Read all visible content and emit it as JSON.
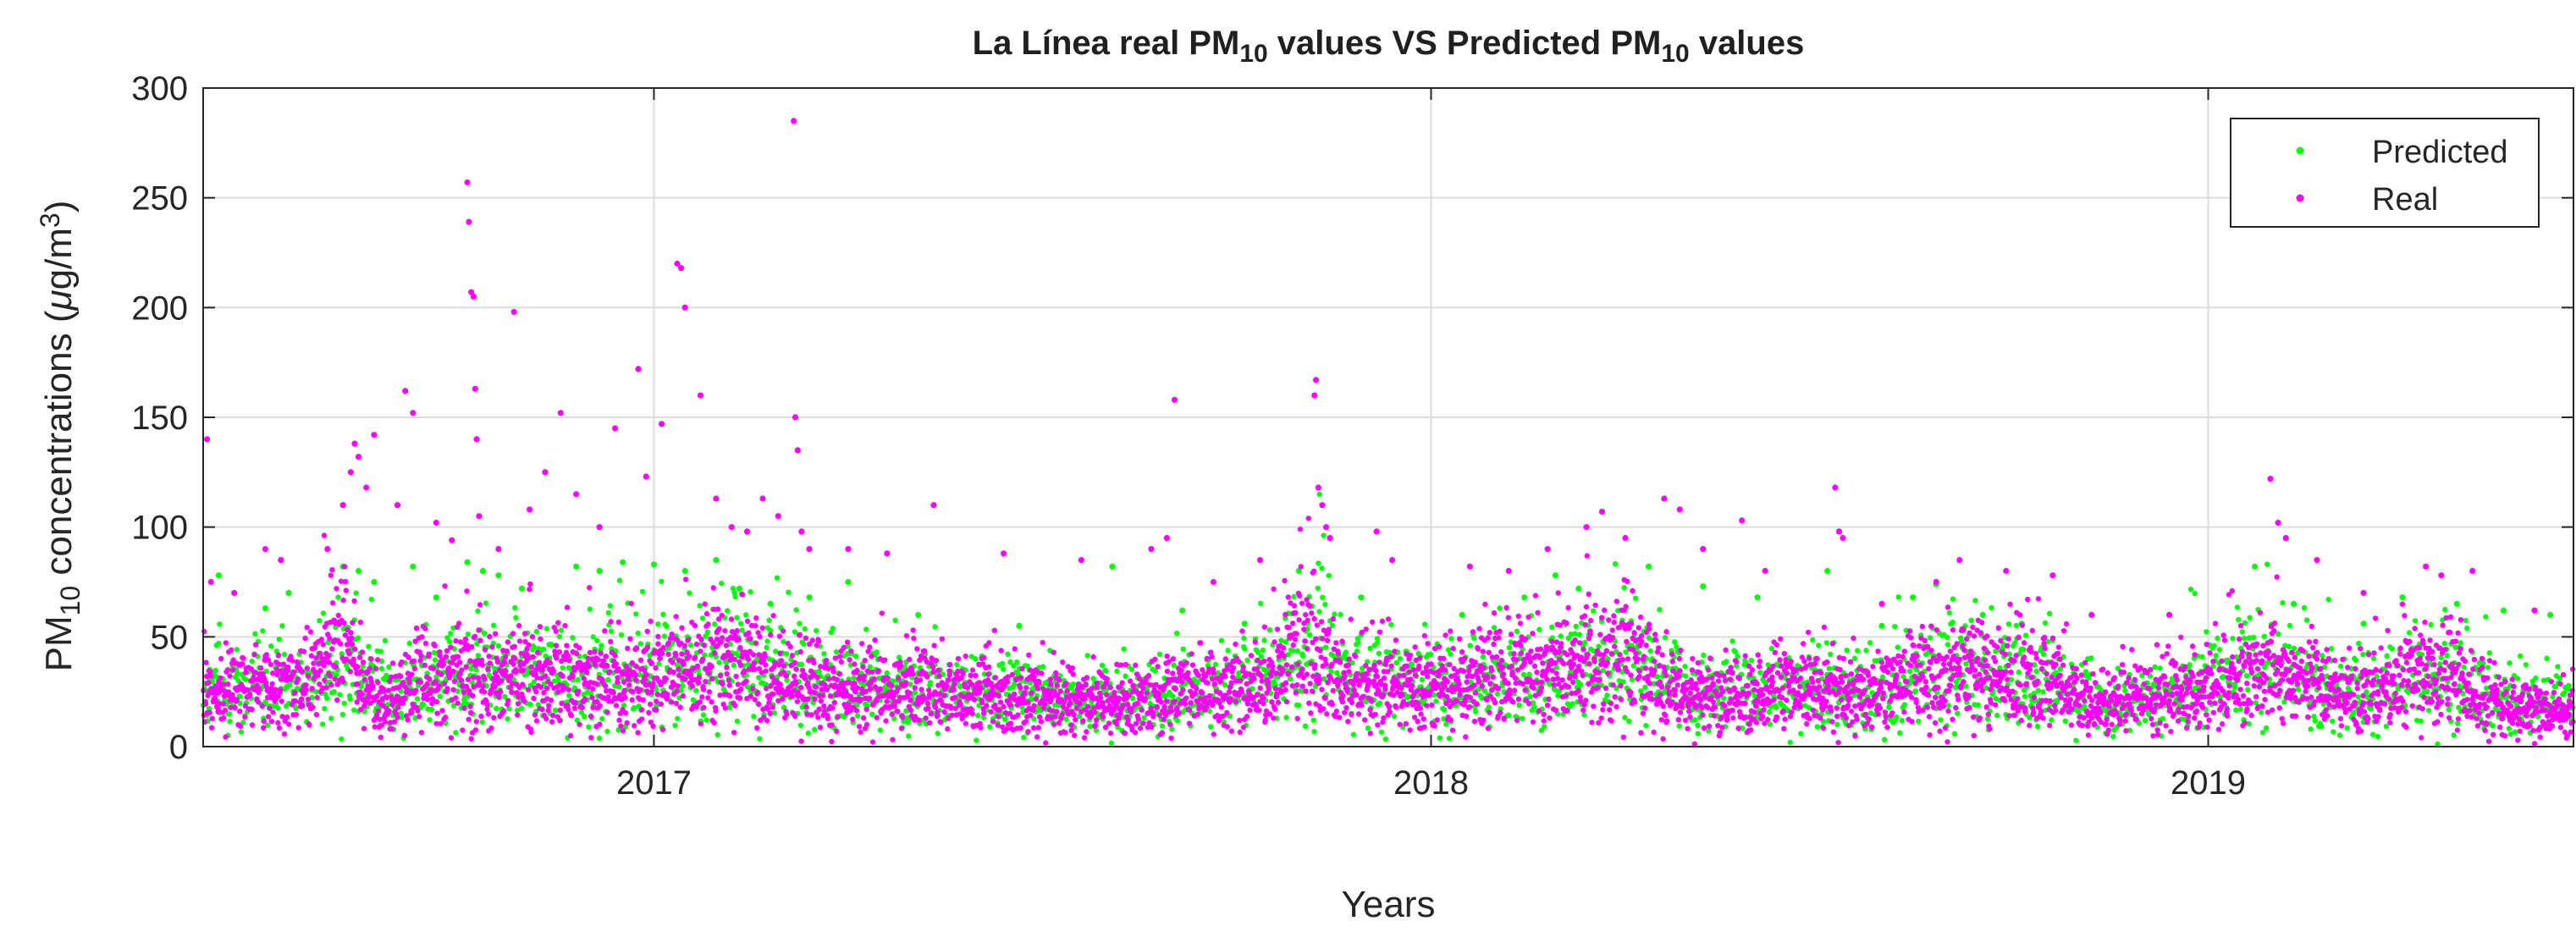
{
  "chart_data": {
    "type": "scatter",
    "title": {
      "parts": [
        {
          "text": "La Línea real PM",
          "sub": false
        },
        {
          "text": "10",
          "sub": true
        },
        {
          "text": " values VS Predicted PM",
          "sub": false
        },
        {
          "text": "10",
          "sub": true
        },
        {
          "text": " values",
          "sub": false
        }
      ]
    },
    "xlabel": "Years",
    "ylabel": {
      "parts": [
        {
          "text": "PM",
          "shift": "none"
        },
        {
          "text": "10",
          "shift": "sub"
        },
        {
          "text": " concentrations (",
          "shift": "none"
        },
        {
          "text": "μ",
          "shift": "italic"
        },
        {
          "text": "g/m",
          "shift": "none"
        },
        {
          "text": "3",
          "shift": "sup"
        },
        {
          "text": ")",
          "shift": "none"
        }
      ]
    },
    "xlim": [
      2016.42,
      2019.47
    ],
    "ylim": [
      0,
      300
    ],
    "xticks": [
      2017,
      2018,
      2019
    ],
    "xtick_labels": [
      "2017",
      "2018",
      "2019"
    ],
    "yticks": [
      0,
      50,
      100,
      150,
      200,
      250,
      300
    ],
    "ytick_labels": [
      "0",
      "50",
      "100",
      "150",
      "200",
      "250",
      "300"
    ],
    "grid": true,
    "legend": {
      "position": "top-right",
      "entries": [
        "Predicted",
        "Real"
      ]
    },
    "series": [
      {
        "name": "Predicted",
        "color": "#00ff00",
        "baseline": [
          [
            2016.42,
            24
          ],
          [
            2016.55,
            26
          ],
          [
            2016.6,
            38
          ],
          [
            2016.67,
            22
          ],
          [
            2016.75,
            30
          ],
          [
            2016.85,
            30
          ],
          [
            2016.95,
            32
          ],
          [
            2017.05,
            35
          ],
          [
            2017.1,
            40
          ],
          [
            2017.2,
            30
          ],
          [
            2017.3,
            25
          ],
          [
            2017.4,
            26
          ],
          [
            2017.5,
            22
          ],
          [
            2017.6,
            22
          ],
          [
            2017.7,
            25
          ],
          [
            2017.8,
            30
          ],
          [
            2017.85,
            50
          ],
          [
            2017.9,
            28
          ],
          [
            2018.0,
            28
          ],
          [
            2018.1,
            30
          ],
          [
            2018.2,
            35
          ],
          [
            2018.25,
            42
          ],
          [
            2018.3,
            28
          ],
          [
            2018.4,
            24
          ],
          [
            2018.5,
            25
          ],
          [
            2018.6,
            28
          ],
          [
            2018.7,
            35
          ],
          [
            2018.8,
            30
          ],
          [
            2018.85,
            20
          ],
          [
            2018.95,
            22
          ],
          [
            2019.05,
            35
          ],
          [
            2019.1,
            32
          ],
          [
            2019.2,
            25
          ],
          [
            2019.3,
            32
          ],
          [
            2019.4,
            20
          ],
          [
            2019.47,
            18
          ]
        ],
        "highlights": [
          [
            2016.44,
            78
          ],
          [
            2016.5,
            63
          ],
          [
            2016.53,
            70
          ],
          [
            2016.6,
            82
          ],
          [
            2016.62,
            80
          ],
          [
            2016.64,
            75
          ],
          [
            2016.69,
            82
          ],
          [
            2016.72,
            68
          ],
          [
            2016.76,
            84
          ],
          [
            2016.78,
            80
          ],
          [
            2016.8,
            78
          ],
          [
            2016.83,
            72
          ],
          [
            2016.9,
            82
          ],
          [
            2016.93,
            80
          ],
          [
            2016.96,
            84
          ],
          [
            2017.0,
            83
          ],
          [
            2017.04,
            80
          ],
          [
            2017.08,
            85
          ],
          [
            2017.11,
            72
          ],
          [
            2017.15,
            65
          ],
          [
            2017.2,
            68
          ],
          [
            2017.25,
            75
          ],
          [
            2017.34,
            60
          ],
          [
            2017.47,
            55
          ],
          [
            2017.59,
            82
          ],
          [
            2017.68,
            62
          ],
          [
            2017.76,
            56
          ],
          [
            2017.83,
            80
          ],
          [
            2017.91,
            68
          ],
          [
            2018.04,
            60
          ],
          [
            2018.12,
            68
          ],
          [
            2018.16,
            78
          ],
          [
            2018.19,
            72
          ],
          [
            2018.28,
            82
          ],
          [
            2018.35,
            73
          ],
          [
            2018.42,
            68
          ],
          [
            2018.51,
            80
          ],
          [
            2018.58,
            55
          ],
          [
            2018.62,
            68
          ],
          [
            2018.65,
            74
          ],
          [
            2018.71,
            60
          ],
          [
            2018.76,
            56
          ],
          [
            2019.06,
            82
          ],
          [
            2019.11,
            65
          ],
          [
            2019.2,
            56
          ],
          [
            2019.25,
            68
          ],
          [
            2019.32,
            65
          ],
          [
            2019.38,
            62
          ],
          [
            2019.44,
            60
          ]
        ]
      },
      {
        "name": "Real",
        "color": "#ff00ff",
        "baseline": [
          [
            2016.42,
            25
          ],
          [
            2016.5,
            25
          ],
          [
            2016.55,
            28
          ],
          [
            2016.6,
            48
          ],
          [
            2016.62,
            30
          ],
          [
            2016.65,
            18
          ],
          [
            2016.7,
            28
          ],
          [
            2016.75,
            30
          ],
          [
            2016.8,
            28
          ],
          [
            2016.85,
            32
          ],
          [
            2016.9,
            28
          ],
          [
            2016.95,
            30
          ],
          [
            2017.0,
            30
          ],
          [
            2017.05,
            35
          ],
          [
            2017.1,
            38
          ],
          [
            2017.15,
            30
          ],
          [
            2017.2,
            28
          ],
          [
            2017.3,
            25
          ],
          [
            2017.4,
            24
          ],
          [
            2017.5,
            20
          ],
          [
            2017.6,
            20
          ],
          [
            2017.65,
            22
          ],
          [
            2017.7,
            24
          ],
          [
            2017.75,
            25
          ],
          [
            2017.8,
            30
          ],
          [
            2017.83,
            52
          ],
          [
            2017.87,
            28
          ],
          [
            2017.9,
            25
          ],
          [
            2018.0,
            26
          ],
          [
            2018.05,
            28
          ],
          [
            2018.1,
            30
          ],
          [
            2018.15,
            32
          ],
          [
            2018.2,
            36
          ],
          [
            2018.25,
            40
          ],
          [
            2018.3,
            25
          ],
          [
            2018.35,
            22
          ],
          [
            2018.4,
            22
          ],
          [
            2018.45,
            25
          ],
          [
            2018.5,
            24
          ],
          [
            2018.55,
            22
          ],
          [
            2018.6,
            28
          ],
          [
            2018.65,
            30
          ],
          [
            2018.7,
            32
          ],
          [
            2018.75,
            32
          ],
          [
            2018.8,
            28
          ],
          [
            2018.85,
            18
          ],
          [
            2018.9,
            20
          ],
          [
            2018.95,
            22
          ],
          [
            2019.0,
            24
          ],
          [
            2019.05,
            33
          ],
          [
            2019.1,
            32
          ],
          [
            2019.15,
            26
          ],
          [
            2019.2,
            24
          ],
          [
            2019.25,
            28
          ],
          [
            2019.3,
            32
          ],
          [
            2019.35,
            22
          ],
          [
            2019.4,
            18
          ],
          [
            2019.47,
            16
          ]
        ],
        "highlights": [
          [
            2016.425,
            140
          ],
          [
            2016.43,
            75
          ],
          [
            2016.46,
            70
          ],
          [
            2016.5,
            90
          ],
          [
            2016.52,
            85
          ],
          [
            2016.58,
            90
          ],
          [
            2016.6,
            110
          ],
          [
            2016.61,
            125
          ],
          [
            2016.615,
            138
          ],
          [
            2016.62,
            132
          ],
          [
            2016.63,
            118
          ],
          [
            2016.64,
            142
          ],
          [
            2016.67,
            110
          ],
          [
            2016.68,
            162
          ],
          [
            2016.69,
            152
          ],
          [
            2016.72,
            102
          ],
          [
            2016.74,
            94
          ],
          [
            2016.76,
            257
          ],
          [
            2016.762,
            239
          ],
          [
            2016.765,
            207
          ],
          [
            2016.768,
            205
          ],
          [
            2016.77,
            163
          ],
          [
            2016.772,
            140
          ],
          [
            2016.775,
            105
          ],
          [
            2016.8,
            90
          ],
          [
            2016.82,
            198
          ],
          [
            2016.84,
            108
          ],
          [
            2016.86,
            125
          ],
          [
            2016.88,
            152
          ],
          [
            2016.9,
            115
          ],
          [
            2016.93,
            100
          ],
          [
            2016.95,
            145
          ],
          [
            2016.98,
            172
          ],
          [
            2016.99,
            123
          ],
          [
            2017.01,
            147
          ],
          [
            2017.03,
            220
          ],
          [
            2017.035,
            218
          ],
          [
            2017.04,
            200
          ],
          [
            2017.06,
            160
          ],
          [
            2017.08,
            113
          ],
          [
            2017.1,
            100
          ],
          [
            2017.12,
            98
          ],
          [
            2017.14,
            113
          ],
          [
            2017.16,
            105
          ],
          [
            2017.18,
            285
          ],
          [
            2017.182,
            150
          ],
          [
            2017.185,
            135
          ],
          [
            2017.19,
            98
          ],
          [
            2017.2,
            90
          ],
          [
            2017.25,
            90
          ],
          [
            2017.3,
            88
          ],
          [
            2017.36,
            110
          ],
          [
            2017.45,
            88
          ],
          [
            2017.55,
            85
          ],
          [
            2017.64,
            90
          ],
          [
            2017.66,
            95
          ],
          [
            2017.67,
            158
          ],
          [
            2017.72,
            75
          ],
          [
            2017.78,
            85
          ],
          [
            2017.85,
            160
          ],
          [
            2017.852,
            167
          ],
          [
            2017.855,
            118
          ],
          [
            2017.86,
            110
          ],
          [
            2017.865,
            100
          ],
          [
            2017.87,
            95
          ],
          [
            2017.93,
            98
          ],
          [
            2017.95,
            85
          ],
          [
            2018.05,
            82
          ],
          [
            2018.1,
            80
          ],
          [
            2018.15,
            90
          ],
          [
            2018.2,
            100
          ],
          [
            2018.22,
            107
          ],
          [
            2018.25,
            95
          ],
          [
            2018.3,
            113
          ],
          [
            2018.32,
            108
          ],
          [
            2018.35,
            90
          ],
          [
            2018.4,
            103
          ],
          [
            2018.43,
            80
          ],
          [
            2018.52,
            118
          ],
          [
            2018.525,
            98
          ],
          [
            2018.53,
            95
          ],
          [
            2018.58,
            65
          ],
          [
            2018.65,
            75
          ],
          [
            2018.68,
            85
          ],
          [
            2018.74,
            80
          ],
          [
            2018.8,
            78
          ],
          [
            2018.85,
            60
          ],
          [
            2018.95,
            60
          ],
          [
            2019.08,
            122
          ],
          [
            2019.09,
            102
          ],
          [
            2019.1,
            95
          ],
          [
            2019.14,
            85
          ],
          [
            2019.2,
            70
          ],
          [
            2019.28,
            82
          ],
          [
            2019.3,
            78
          ],
          [
            2019.34,
            80
          ],
          [
            2019.42,
            62
          ]
        ]
      }
    ]
  }
}
